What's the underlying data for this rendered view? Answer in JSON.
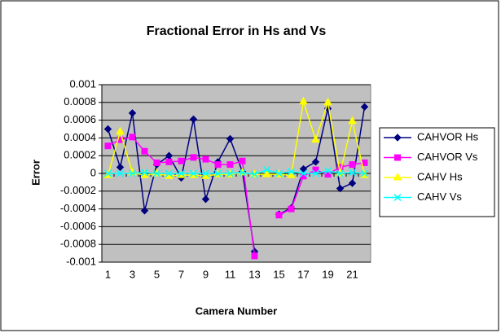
{
  "chart_data": {
    "type": "line",
    "title": "Fractional Error in Hs and Vs",
    "x_label": "Camera Number",
    "y_label": "Error",
    "categories": [
      "1",
      null,
      "3",
      null,
      "5",
      null,
      "7",
      null,
      "9",
      null,
      "11",
      null,
      "13",
      null,
      "15",
      null,
      "17",
      null,
      "19",
      null,
      "21",
      null
    ],
    "ylim": [
      -0.001,
      0.001
    ],
    "yticks": [
      -0.001,
      -0.0008,
      -0.0006,
      -0.0004,
      -0.0002,
      0,
      0.0002,
      0.0004,
      0.0006,
      0.0008,
      0.001
    ],
    "grid": true,
    "legend": "right",
    "series": [
      {
        "name": "CAHVOR Hs",
        "color": "#000080",
        "marker": "diamond",
        "values": [
          0.0005,
          7e-05,
          0.00068,
          -0.00042,
          0.0001,
          0.0002,
          -5e-05,
          0.00061,
          -0.00029,
          0.00013,
          0.00039,
          2e-05,
          -0.00088,
          null,
          -0.00046,
          -0.00039,
          5e-05,
          0.00013,
          0.00073,
          -0.00017,
          -0.00011,
          0.00075
        ]
      },
      {
        "name": "CAHVOR Vs",
        "color": "#ff00ff",
        "marker": "square",
        "values": [
          0.00031,
          0.00038,
          0.00041,
          0.00025,
          0.00012,
          0.00013,
          0.00014,
          0.00018,
          0.00016,
          0.0001,
          0.0001,
          0.00014,
          -0.00093,
          null,
          -0.00047,
          -0.0004,
          -3e-05,
          4e-05,
          -1e-05,
          7e-05,
          0.0001,
          0.00012
        ]
      },
      {
        "name": "CAHV Hs",
        "color": "#ffff00",
        "marker": "triangle",
        "values": [
          -2e-05,
          0.00047,
          1e-05,
          -2e-05,
          0,
          -3e-05,
          -2e-05,
          -2e-05,
          -3e-05,
          -1e-05,
          -1e-05,
          1e-05,
          -1e-05,
          -1e-05,
          -1e-05,
          -2e-05,
          0.00081,
          0.00038,
          0.0008,
          0,
          0.00059,
          -2e-05
        ]
      },
      {
        "name": "CAHV Vs",
        "color": "#00ffff",
        "marker": "x",
        "values": [
          0,
          0,
          0,
          1e-05,
          0,
          0,
          0,
          0,
          0,
          0,
          0,
          1e-05,
          -1e-05,
          4e-05,
          0,
          2e-05,
          0,
          0,
          3e-05,
          0,
          1e-05,
          0
        ]
      }
    ]
  }
}
